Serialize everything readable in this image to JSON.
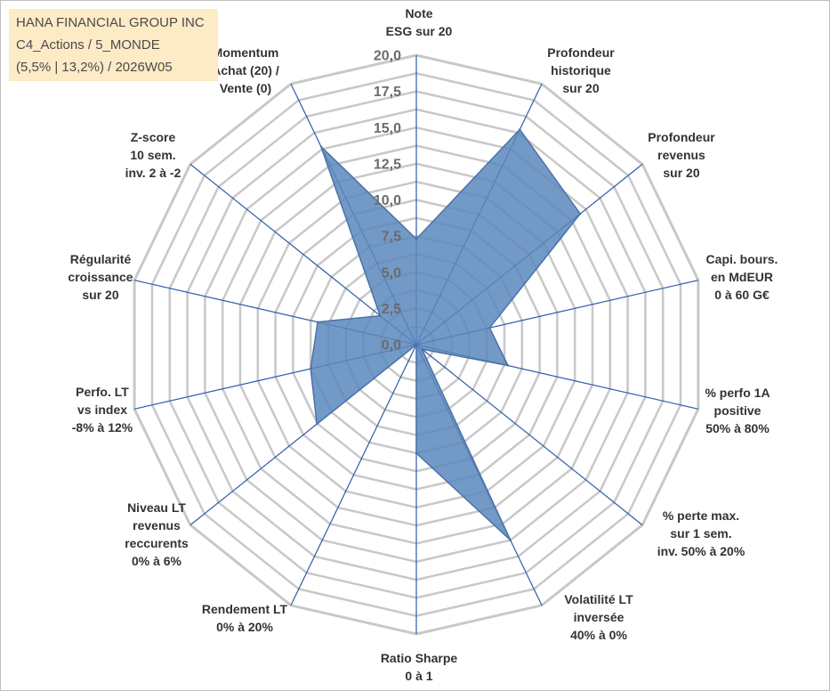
{
  "title_lines": [
    "HANA FINANCIAL GROUP INC",
    "C4_Actions / 5_MONDE",
    "(5,5% | 13,2%) / 2026W05"
  ],
  "colors": {
    "grid": "#c8c8c8",
    "spoke": "#2e5ca8",
    "fill": "#5b87bd",
    "stroke": "#4a72a8"
  },
  "chart_data": {
    "type": "radar",
    "scale": {
      "min": 0,
      "max": 20,
      "step": 2.5
    },
    "grid_levels": [
      0,
      1.25,
      2.5,
      3.75,
      5,
      6.25,
      7.5,
      8.75,
      10,
      11.25,
      12.5,
      13.75,
      15,
      16.25,
      17.5,
      18.75,
      20
    ],
    "tick_labels": [
      "0,0",
      "2,5",
      "5,0",
      "7,5",
      "10,0",
      "12,5",
      "15,0",
      "17,5",
      "20,0"
    ],
    "axes": [
      {
        "lines": [
          "Note",
          "ESG sur 20"
        ]
      },
      {
        "lines": [
          "Profondeur",
          "historique",
          "sur 20"
        ]
      },
      {
        "lines": [
          "Profondeur",
          "revenus",
          "sur 20"
        ]
      },
      {
        "lines": [
          "Capi. bours.",
          "en MdEUR",
          "0 à 60 G€"
        ]
      },
      {
        "lines": [
          "% perfo 1A",
          "positive",
          "50% à 80%"
        ]
      },
      {
        "lines": [
          "% perte max.",
          "sur 1 sem.",
          "inv. 50% à 20%"
        ]
      },
      {
        "lines": [
          "Volatilité LT",
          "inversée",
          "40% à 0%"
        ]
      },
      {
        "lines": [
          "Ratio Sharpe",
          "0 à 1"
        ]
      },
      {
        "lines": [
          "Rendement LT",
          "0% à 20%"
        ]
      },
      {
        "lines": [
          "Niveau LT",
          "revenus",
          "reccurents",
          "0% à 6%"
        ]
      },
      {
        "lines": [
          "Perfo. LT",
          "vs index",
          "-8% à 12%"
        ]
      },
      {
        "lines": [
          "Régularité",
          "croissance",
          "sur 20"
        ]
      },
      {
        "lines": [
          "Z-score",
          "10 sem.",
          "inv. 2 à -2"
        ]
      },
      {
        "lines": [
          "Momentum",
          "Achat (20) /",
          "Vente (0)"
        ]
      }
    ],
    "values": [
      7.3,
      16.5,
      14.5,
      5.2,
      6.5,
      0.5,
      15.0,
      7.5,
      0.0,
      8.8,
      7.5,
      7.0,
      3.2,
      15.2
    ]
  }
}
